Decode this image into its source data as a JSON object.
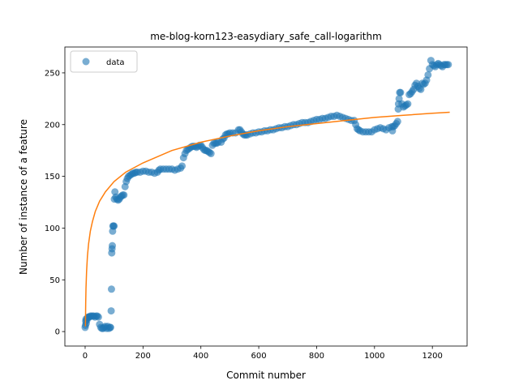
{
  "chart_data": {
    "type": "scatter",
    "title": "me-blog-korn123-easydiary_safe_call-logarithm",
    "xlabel": "Commit number",
    "ylabel": "Number of instance of a feature",
    "xlim": [
      -70,
      1320
    ],
    "ylim": [
      -14,
      275
    ],
    "xticks": [
      0,
      200,
      400,
      600,
      800,
      1000,
      1200
    ],
    "yticks": [
      0,
      50,
      100,
      150,
      200,
      250
    ],
    "grid": false,
    "legend": {
      "placement": "top-left",
      "entries": [
        "data"
      ]
    },
    "series": [
      {
        "name": "data",
        "kind": "scatter",
        "color": "#1f77b4",
        "points": [
          [
            0,
            4
          ],
          [
            1,
            6
          ],
          [
            2,
            10
          ],
          [
            3,
            12
          ],
          [
            4,
            8
          ],
          [
            6,
            11
          ],
          [
            8,
            13
          ],
          [
            10,
            14
          ],
          [
            12,
            14
          ],
          [
            15,
            14
          ],
          [
            18,
            15
          ],
          [
            22,
            15
          ],
          [
            26,
            15
          ],
          [
            30,
            15
          ],
          [
            34,
            14
          ],
          [
            38,
            15
          ],
          [
            42,
            15
          ],
          [
            46,
            14
          ],
          [
            50,
            7
          ],
          [
            54,
            4
          ],
          [
            58,
            3
          ],
          [
            62,
            3
          ],
          [
            66,
            4
          ],
          [
            70,
            5
          ],
          [
            74,
            3
          ],
          [
            78,
            5
          ],
          [
            82,
            3
          ],
          [
            86,
            4
          ],
          [
            88,
            4
          ],
          [
            90,
            20
          ],
          [
            91,
            41
          ],
          [
            92,
            76
          ],
          [
            93,
            80
          ],
          [
            94,
            83
          ],
          [
            95,
            97
          ],
          [
            96,
            102
          ],
          [
            98,
            102
          ],
          [
            100,
            102
          ],
          [
            101,
            128
          ],
          [
            103,
            135
          ],
          [
            106,
            130
          ],
          [
            110,
            128
          ],
          [
            114,
            127
          ],
          [
            118,
            128
          ],
          [
            122,
            130
          ],
          [
            126,
            131
          ],
          [
            130,
            132
          ],
          [
            134,
            132
          ],
          [
            138,
            140
          ],
          [
            142,
            145
          ],
          [
            146,
            148
          ],
          [
            150,
            150
          ],
          [
            155,
            151
          ],
          [
            160,
            152
          ],
          [
            165,
            153
          ],
          [
            170,
            153
          ],
          [
            175,
            154
          ],
          [
            180,
            154
          ],
          [
            190,
            154
          ],
          [
            200,
            155
          ],
          [
            210,
            155
          ],
          [
            220,
            154
          ],
          [
            230,
            154
          ],
          [
            240,
            153
          ],
          [
            250,
            154
          ],
          [
            255,
            156
          ],
          [
            260,
            157
          ],
          [
            270,
            157
          ],
          [
            280,
            157
          ],
          [
            290,
            157
          ],
          [
            300,
            157
          ],
          [
            310,
            156
          ],
          [
            320,
            157
          ],
          [
            330,
            158
          ],
          [
            335,
            160
          ],
          [
            340,
            168
          ],
          [
            345,
            172
          ],
          [
            350,
            175
          ],
          [
            355,
            176
          ],
          [
            360,
            177
          ],
          [
            365,
            178
          ],
          [
            370,
            179
          ],
          [
            375,
            179
          ],
          [
            380,
            179
          ],
          [
            385,
            178
          ],
          [
            390,
            179
          ],
          [
            395,
            180
          ],
          [
            400,
            180
          ],
          [
            405,
            178
          ],
          [
            410,
            176
          ],
          [
            415,
            175
          ],
          [
            420,
            175
          ],
          [
            425,
            174
          ],
          [
            430,
            173
          ],
          [
            435,
            172
          ],
          [
            440,
            180
          ],
          [
            445,
            182
          ],
          [
            450,
            182
          ],
          [
            455,
            182
          ],
          [
            460,
            183
          ],
          [
            470,
            183
          ],
          [
            475,
            186
          ],
          [
            480,
            187
          ],
          [
            485,
            190
          ],
          [
            490,
            191
          ],
          [
            495,
            191
          ],
          [
            500,
            192
          ],
          [
            510,
            192
          ],
          [
            520,
            192
          ],
          [
            530,
            195
          ],
          [
            535,
            195
          ],
          [
            540,
            193
          ],
          [
            545,
            191
          ],
          [
            550,
            190
          ],
          [
            555,
            190
          ],
          [
            560,
            190
          ],
          [
            570,
            191
          ],
          [
            580,
            192
          ],
          [
            590,
            192
          ],
          [
            600,
            193
          ],
          [
            610,
            193
          ],
          [
            620,
            194
          ],
          [
            630,
            194
          ],
          [
            640,
            195
          ],
          [
            650,
            195
          ],
          [
            660,
            196
          ],
          [
            670,
            197
          ],
          [
            680,
            197
          ],
          [
            690,
            198
          ],
          [
            700,
            198
          ],
          [
            710,
            199
          ],
          [
            720,
            200
          ],
          [
            730,
            200
          ],
          [
            740,
            201
          ],
          [
            750,
            202
          ],
          [
            760,
            202
          ],
          [
            770,
            202
          ],
          [
            780,
            203
          ],
          [
            790,
            204
          ],
          [
            800,
            205
          ],
          [
            810,
            205
          ],
          [
            820,
            206
          ],
          [
            830,
            206
          ],
          [
            840,
            207
          ],
          [
            850,
            208
          ],
          [
            860,
            208
          ],
          [
            870,
            209
          ],
          [
            880,
            208
          ],
          [
            890,
            207
          ],
          [
            900,
            206
          ],
          [
            910,
            205
          ],
          [
            920,
            204
          ],
          [
            930,
            204
          ],
          [
            935,
            200
          ],
          [
            940,
            196
          ],
          [
            945,
            195
          ],
          [
            950,
            194
          ],
          [
            960,
            193
          ],
          [
            970,
            193
          ],
          [
            980,
            193
          ],
          [
            990,
            193
          ],
          [
            1000,
            195
          ],
          [
            1010,
            196
          ],
          [
            1020,
            197
          ],
          [
            1030,
            196
          ],
          [
            1040,
            195
          ],
          [
            1050,
            197
          ],
          [
            1060,
            198
          ],
          [
            1062,
            194
          ],
          [
            1065,
            198
          ],
          [
            1070,
            199
          ],
          [
            1075,
            201
          ],
          [
            1080,
            203
          ],
          [
            1082,
            215
          ],
          [
            1083,
            220
          ],
          [
            1085,
            225
          ],
          [
            1087,
            231
          ],
          [
            1090,
            231
          ],
          [
            1095,
            220
          ],
          [
            1100,
            217
          ],
          [
            1105,
            218
          ],
          [
            1110,
            219
          ],
          [
            1115,
            220
          ],
          [
            1120,
            229
          ],
          [
            1125,
            230
          ],
          [
            1130,
            232
          ],
          [
            1135,
            234
          ],
          [
            1140,
            238
          ],
          [
            1145,
            240
          ],
          [
            1150,
            237
          ],
          [
            1155,
            235
          ],
          [
            1160,
            234
          ],
          [
            1165,
            240
          ],
          [
            1170,
            239
          ],
          [
            1175,
            240
          ],
          [
            1180,
            243
          ],
          [
            1185,
            248
          ],
          [
            1190,
            254
          ],
          [
            1195,
            262
          ],
          [
            1200,
            258
          ],
          [
            1205,
            257
          ],
          [
            1210,
            256
          ],
          [
            1215,
            258
          ],
          [
            1220,
            259
          ],
          [
            1225,
            258
          ],
          [
            1230,
            257
          ],
          [
            1235,
            256
          ],
          [
            1240,
            258
          ],
          [
            1245,
            258
          ],
          [
            1250,
            258
          ],
          [
            1255,
            258
          ]
        ]
      },
      {
        "kind": "line",
        "color": "#ff7f0e",
        "points": [
          [
            1,
            5
          ],
          [
            2,
            28
          ],
          [
            3,
            42
          ],
          [
            5,
            58
          ],
          [
            8,
            73
          ],
          [
            12,
            85
          ],
          [
            18,
            97
          ],
          [
            25,
            106
          ],
          [
            35,
            116
          ],
          [
            50,
            126
          ],
          [
            70,
            135
          ],
          [
            100,
            145
          ],
          [
            140,
            154
          ],
          [
            200,
            163
          ],
          [
            300,
            175
          ],
          [
            400,
            183
          ],
          [
            500,
            189
          ],
          [
            600,
            194
          ],
          [
            700,
            198
          ],
          [
            800,
            201
          ],
          [
            900,
            204
          ],
          [
            1000,
            207
          ],
          [
            1100,
            209
          ],
          [
            1200,
            211
          ],
          [
            1260,
            212
          ]
        ]
      }
    ]
  }
}
